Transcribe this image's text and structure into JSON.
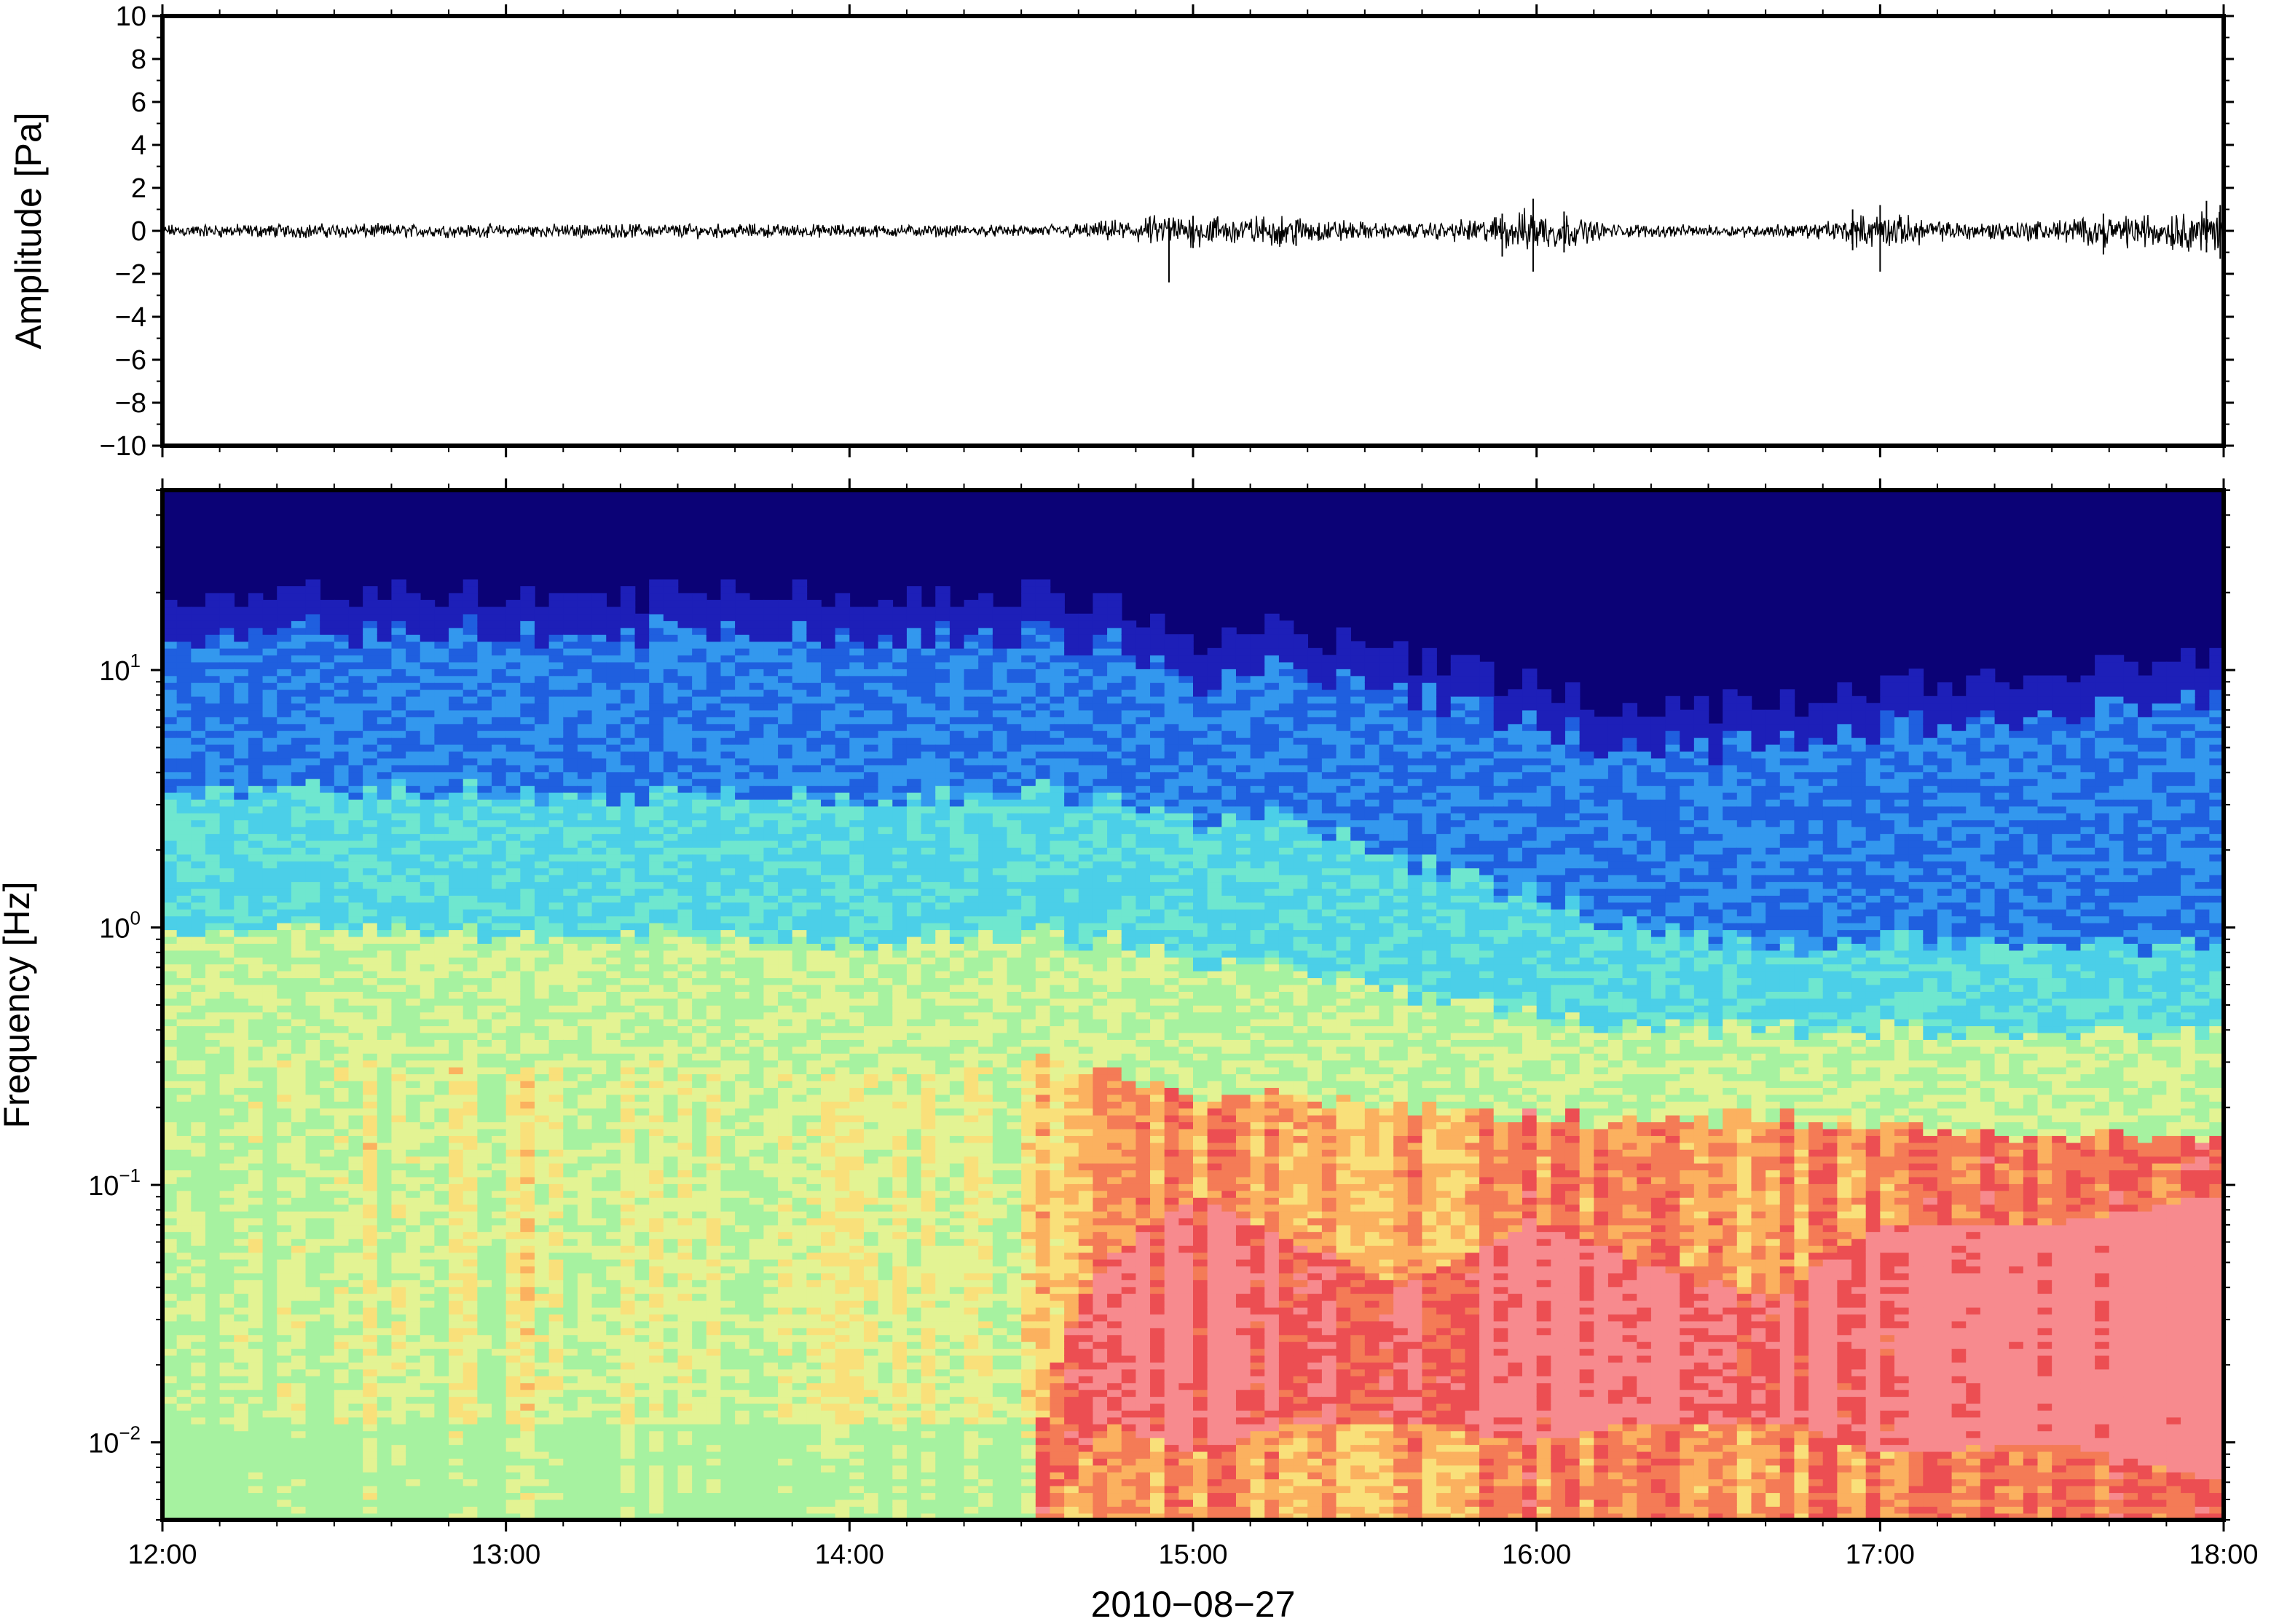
{
  "chart_data": [
    {
      "type": "line",
      "panel": "waveform",
      "ylabel": "Amplitude [Pa]",
      "ylim": [
        -10,
        10
      ],
      "yticks": [
        {
          "value": 10,
          "label": "10"
        },
        {
          "value": 8,
          "label": "8"
        },
        {
          "value": 6,
          "label": "6"
        },
        {
          "value": 4,
          "label": "4"
        },
        {
          "value": 2,
          "label": "2"
        },
        {
          "value": 0,
          "label": "0"
        },
        {
          "value": -2,
          "label": "−2"
        },
        {
          "value": -4,
          "label": "−4"
        },
        {
          "value": -6,
          "label": "−6"
        },
        {
          "value": -8,
          "label": "−8"
        },
        {
          "value": -10,
          "label": "−10"
        }
      ],
      "xlim_hours": [
        12,
        18
      ],
      "envelope": {
        "hours": [
          12.0,
          12.5,
          13.0,
          13.5,
          14.0,
          14.5,
          14.7,
          14.93,
          15.3,
          15.6,
          15.85,
          16.0,
          16.2,
          16.5,
          16.8,
          17.0,
          17.2,
          17.5,
          17.8,
          18.0
        ],
        "amplitude_pa": [
          0.35,
          0.4,
          0.35,
          0.4,
          0.35,
          0.3,
          0.45,
          0.9,
          0.8,
          0.35,
          0.7,
          1.3,
          0.4,
          0.3,
          0.4,
          1.0,
          0.5,
          0.6,
          1.0,
          1.2
        ]
      },
      "spikes": [
        {
          "hour": 14.93,
          "max": 0.6,
          "min": -2.4
        },
        {
          "hour": 15.0,
          "max": 0.7,
          "min": -0.8
        },
        {
          "hour": 15.3,
          "max": 0.5,
          "min": -0.7
        },
        {
          "hour": 15.9,
          "max": 0.8,
          "min": -1.2
        },
        {
          "hour": 15.99,
          "max": 1.5,
          "min": -1.9
        },
        {
          "hour": 16.08,
          "max": 0.9,
          "min": -1.0
        },
        {
          "hour": 16.92,
          "max": 1.0,
          "min": -0.9
        },
        {
          "hour": 17.0,
          "max": 1.2,
          "min": -1.9
        },
        {
          "hour": 17.65,
          "max": 0.8,
          "min": -1.1
        },
        {
          "hour": 17.95,
          "max": 1.4,
          "min": -1.0
        },
        {
          "hour": 17.99,
          "max": 1.2,
          "min": -1.3
        }
      ]
    },
    {
      "type": "heatmap",
      "panel": "spectrogram",
      "ylabel": "Frequency [Hz]",
      "yscale": "log",
      "ylim_hz": [
        0.005,
        50
      ],
      "yticks": [
        {
          "value": 10,
          "base": "10",
          "exp": "1"
        },
        {
          "value": 1,
          "base": "10",
          "exp": "0"
        },
        {
          "value": 0.1,
          "base": "10",
          "exp": "−1"
        },
        {
          "value": 0.01,
          "base": "10",
          "exp": "−2"
        }
      ],
      "colormap": [
        "#0b0276",
        "#1d1fb8",
        "#1f5fdf",
        "#3398ee",
        "#4bcfe8",
        "#6fe7cf",
        "#a6f2a0",
        "#e3f393",
        "#f9e07a",
        "#fbb15f",
        "#f47b56",
        "#ec4e52",
        "#f78a8e"
      ],
      "boundaries_hz": {
        "hours": [
          12.0,
          13.0,
          14.0,
          14.5,
          14.75,
          15.0,
          15.3,
          15.6,
          16.0,
          16.3,
          16.7,
          17.0,
          17.5,
          18.0
        ],
        "top_blue": [
          14,
          14,
          14,
          14,
          13,
          9,
          10,
          8,
          6,
          5,
          5,
          6,
          7,
          8
        ],
        "cyan": [
          3.5,
          3.3,
          3.2,
          3.4,
          3.2,
          2.6,
          2.6,
          1.8,
          1.3,
          1.0,
          0.8,
          0.9,
          0.9,
          0.85
        ],
        "green": [
          1.0,
          0.95,
          0.9,
          0.95,
          0.9,
          0.75,
          0.7,
          0.55,
          0.45,
          0.42,
          0.4,
          0.4,
          0.4,
          0.4
        ],
        "yellow": [
          0.3,
          0.28,
          0.28,
          0.3,
          0.28,
          0.22,
          0.22,
          0.2,
          0.18,
          0.18,
          0.18,
          0.17,
          0.16,
          0.15
        ],
        "red_top": [
          0,
          0,
          0,
          0,
          0.05,
          0.09,
          0.06,
          0.04,
          0.07,
          0.05,
          0.035,
          0.07,
          0.07,
          0.09
        ],
        "red_bottom": [
          0,
          0,
          0,
          0,
          0.012,
          0.009,
          0.012,
          0.012,
          0.01,
          0.012,
          0.012,
          0.009,
          0.01,
          0.007
        ]
      },
      "lowfreq_level": {
        "hours": [
          12.0,
          12.5,
          13.0,
          13.5,
          14.0,
          14.5,
          14.6,
          15.0,
          15.5,
          16.0,
          16.5,
          17.0,
          17.5,
          18.0
        ],
        "level": [
          6.2,
          6.8,
          7.0,
          7.3,
          6.8,
          6.6,
          8.8,
          9.6,
          9.0,
          10.0,
          9.2,
          10.0,
          10.3,
          11.0
        ]
      }
    }
  ],
  "x_axis": {
    "ticks": [
      {
        "hour": 12,
        "label": "12:00"
      },
      {
        "hour": 13,
        "label": "13:00"
      },
      {
        "hour": 14,
        "label": "14:00"
      },
      {
        "hour": 15,
        "label": "15:00"
      },
      {
        "hour": 16,
        "label": "16:00"
      },
      {
        "hour": 17,
        "label": "17:00"
      },
      {
        "hour": 18,
        "label": "18:00"
      }
    ],
    "xlabel": "2010−08−27"
  }
}
